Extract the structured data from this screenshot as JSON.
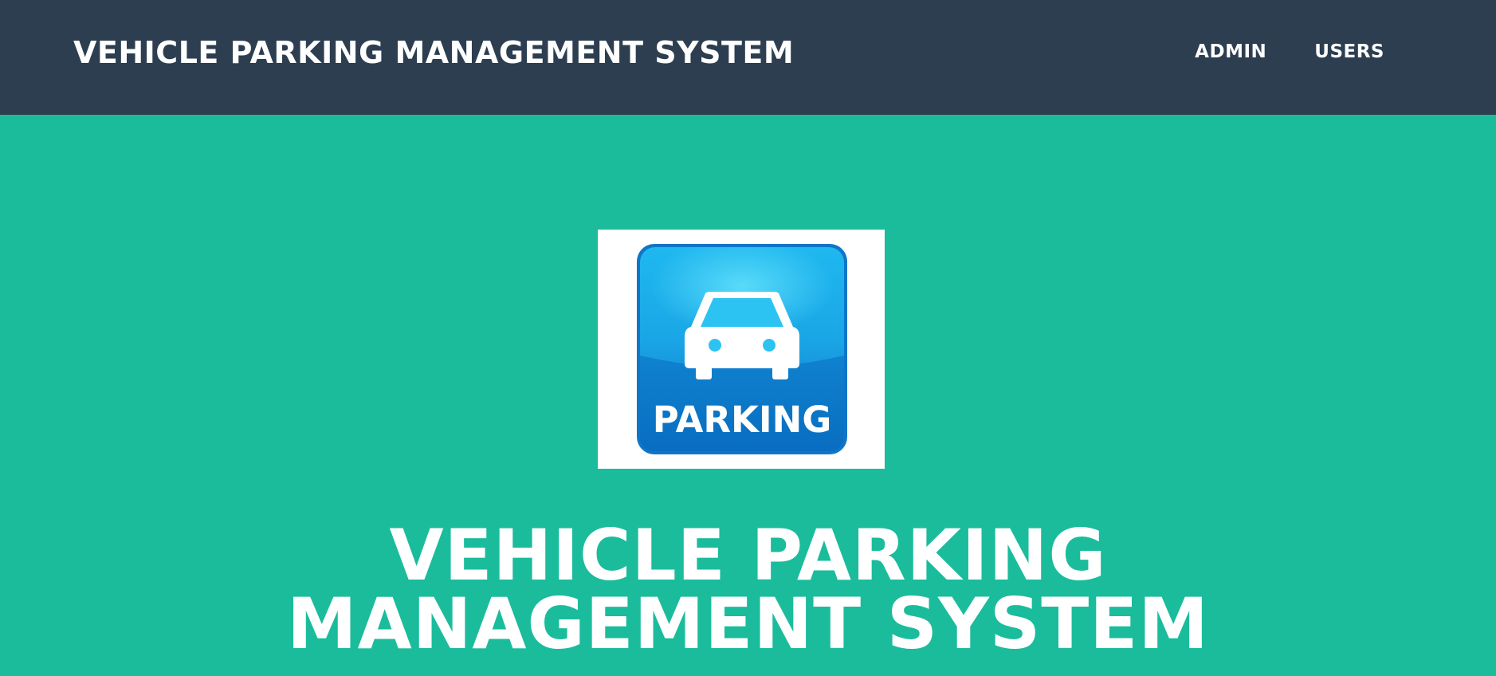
{
  "navbar": {
    "brand": "VEHICLE PARKING MANAGEMENT SYSTEM",
    "links": [
      {
        "label": "ADMIN"
      },
      {
        "label": "USERS"
      }
    ]
  },
  "masthead": {
    "logo_icon": "parking-car-icon",
    "logo_text": "PARKING",
    "title_line1": "VEHICLE PARKING",
    "title_line2": "MANAGEMENT SYSTEM"
  },
  "colors": {
    "navbar_bg": "#2c3e50",
    "masthead_bg": "#1abc9c",
    "text": "#ffffff",
    "logo_blue": "#1187d6"
  }
}
